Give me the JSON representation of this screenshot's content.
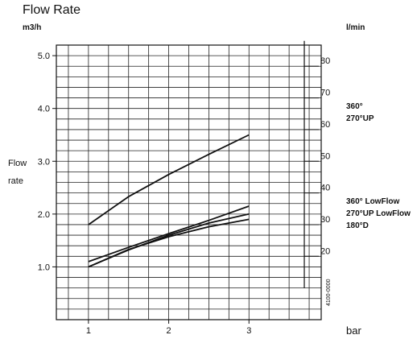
{
  "chart_data": {
    "type": "line",
    "title": "Flow Rate",
    "ylabel": "Flow rate",
    "ylabel_lines": [
      "Flow",
      "rate"
    ],
    "y_unit": "m3/h",
    "y2_unit": "l/min",
    "x_unit": "bar",
    "x_ticks": [
      "1",
      "2",
      "3"
    ],
    "y_ticks": [
      "1.0",
      "2.0",
      "3.0",
      "4.0",
      "5.0"
    ],
    "y2_ticks": [
      "20",
      "30",
      "40",
      "50",
      "60",
      "70",
      "80"
    ],
    "xlim": [
      0.6,
      3.9
    ],
    "ylim": [
      0,
      5.2
    ],
    "y2_per_y": 16.6667,
    "code_label": "4100-0000",
    "series": [
      {
        "name": "",
        "x": [
          1,
          1.5,
          2,
          2.5,
          3
        ],
        "y": [
          1.8,
          2.33,
          2.75,
          3.13,
          3.5
        ]
      },
      {
        "name": "",
        "x": [
          1,
          1.5,
          2,
          2.5,
          3
        ],
        "y": [
          1.1,
          1.37,
          1.63,
          1.88,
          2.15
        ]
      },
      {
        "name": "",
        "x": [
          1,
          1.5,
          2,
          2.5,
          3
        ],
        "y": [
          1.0,
          1.32,
          1.6,
          1.83,
          2.0
        ]
      },
      {
        "name": "",
        "x": [
          1,
          1.5,
          2,
          2.5,
          3
        ],
        "y": [
          1.0,
          1.33,
          1.57,
          1.76,
          1.9
        ]
      }
    ],
    "legend_groups": [
      {
        "lines": [
          "360°",
          "270°UP"
        ],
        "y2_anchor": 65
      },
      {
        "lines": [
          "360° LowFlow",
          "270°UP LowFlow",
          "180°D"
        ],
        "y2_anchor": 35
      }
    ],
    "grid": true
  }
}
